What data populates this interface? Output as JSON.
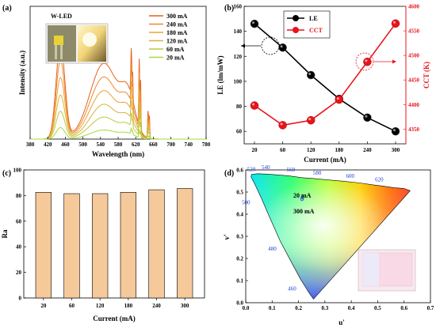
{
  "chart_data": [
    {
      "type": "line",
      "panel_label": "(a)",
      "inset_label": "W-LED",
      "xlabel": "Wavelength (nm)",
      "ylabel": "Intensity (a.u.)",
      "xlim": [
        380,
        780
      ],
      "x_ticks": [
        "380",
        "420",
        "460",
        "500",
        "540",
        "580",
        "620",
        "660",
        "700",
        "740",
        "780"
      ],
      "legend_placement": "top-right",
      "series": [
        {
          "name": "300 mA",
          "color": "#e8601c",
          "scale": 1.0
        },
        {
          "name": "240 mA",
          "color": "#ee8a2a",
          "scale": 0.82
        },
        {
          "name": "180 mA",
          "color": "#e9a23b",
          "scale": 0.64
        },
        {
          "name": "120 mA",
          "color": "#d8b43a",
          "scale": 0.46
        },
        {
          "name": "60 mA",
          "color": "#b9cc3e",
          "scale": 0.29
        },
        {
          "name": "20 mA",
          "color": "#a2dc3c",
          "scale": 0.12
        }
      ]
    },
    {
      "type": "line",
      "panel_label": "(b)",
      "xlabel": "Current (mA)",
      "ylabel": "LE (lm/mW)",
      "y2label": "CCT (K)",
      "categories": [
        "20",
        "60",
        "120",
        "180",
        "240",
        "300"
      ],
      "ylim": [
        50,
        160
      ],
      "y_ticks": [
        "60",
        "80",
        "100",
        "120",
        "140",
        "160"
      ],
      "y2lim": [
        4320,
        4600
      ],
      "y2_ticks": [
        "4350",
        "4400",
        "4450",
        "4500",
        "4550",
        "4600"
      ],
      "legend_placement": "top-center",
      "series": [
        {
          "name": "LE",
          "color": "#000000",
          "values": [
            146,
            127,
            105,
            86,
            71,
            60
          ]
        },
        {
          "name": "CCT",
          "color": "#e8141c",
          "values": [
            4398,
            4358,
            4368,
            4410,
            4487,
            4565
          ]
        }
      ]
    },
    {
      "type": "bar",
      "panel_label": "(c)",
      "xlabel": "Current (mA)",
      "ylabel": "Ra",
      "categories": [
        "20",
        "60",
        "120",
        "180",
        "240",
        "300"
      ],
      "values": [
        82.5,
        81.5,
        81.5,
        82.5,
        84.5,
        85.5
      ],
      "ylim": [
        0,
        100
      ],
      "y_ticks": [
        "0",
        "20",
        "40",
        "60",
        "80",
        "100"
      ],
      "color": "#f5c99a"
    },
    {
      "type": "scatter",
      "panel_label": "(d)",
      "xlabel": "u'",
      "ylabel": "v'",
      "xlim": [
        0,
        0.7
      ],
      "ylim": [
        0,
        0.6
      ],
      "x_ticks": [
        "0.0",
        "0.1",
        "0.2",
        "0.3",
        "0.4",
        "0.5",
        "0.6",
        "0.7"
      ],
      "y_ticks": [
        "0.0",
        "0.1",
        "0.2",
        "0.3",
        "0.4",
        "0.5",
        "0.6"
      ],
      "wavelength_labels": [
        "460",
        "480",
        "500",
        "520",
        "540",
        "560",
        "580",
        "600",
        "620"
      ],
      "annotations": [
        "20 mA",
        "300 mA"
      ],
      "points": [
        {
          "u": 0.215,
          "v": 0.475
        },
        {
          "u": 0.213,
          "v": 0.468
        }
      ]
    }
  ]
}
